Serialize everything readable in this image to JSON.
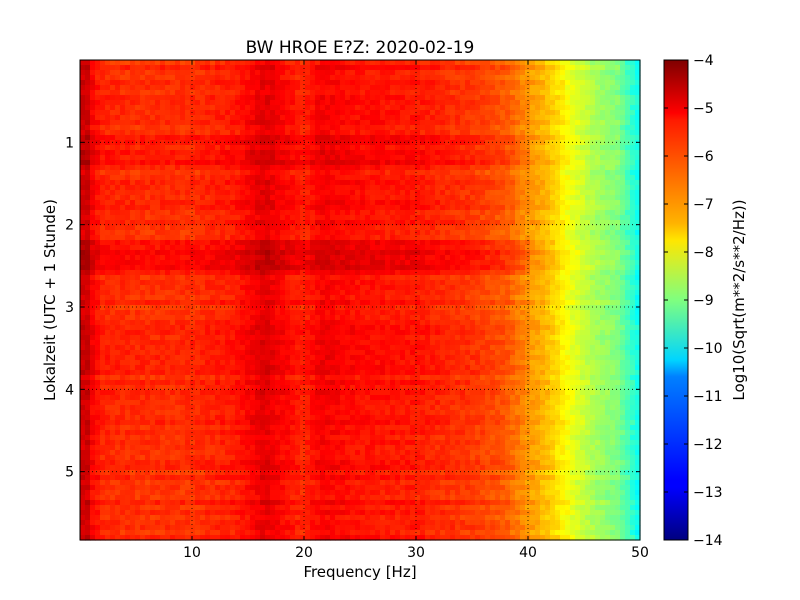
{
  "chart_data": {
    "type": "heatmap",
    "title": "BW HROE E?Z: 2020-02-19",
    "xlabel": "Frequency [Hz]",
    "ylabel": "Lokalzeit (UTC + 1 Stunde)",
    "colorbar_label": "Log10(Sqrt(m**2/s**2/Hz))",
    "colormap": "jet",
    "xlim": [
      0,
      50
    ],
    "ylim": [
      5.83,
      0
    ],
    "y_inverted": true,
    "clim": [
      -14,
      -4
    ],
    "grid": true,
    "x_ticks": [
      10,
      20,
      30,
      40,
      50
    ],
    "y_ticks": [
      1,
      2,
      3,
      4,
      5
    ],
    "colorbar_ticks": [
      -4,
      -5,
      -6,
      -7,
      -8,
      -9,
      -10,
      -11,
      -12,
      -13,
      -14
    ],
    "spectral_profile": {
      "frequency_hz": [
        0,
        0.5,
        1,
        2,
        5,
        10,
        14,
        16.5,
        17,
        20,
        21.5,
        25,
        30,
        35,
        38,
        40,
        42,
        44,
        46,
        48,
        50
      ],
      "log10_amplitude": [
        -5.0,
        -4.6,
        -5.2,
        -5.6,
        -5.7,
        -5.7,
        -5.5,
        -5.0,
        -5.1,
        -5.6,
        -5.2,
        -5.4,
        -5.5,
        -5.8,
        -6.1,
        -6.7,
        -7.2,
        -8.0,
        -8.6,
        -9.0,
        -10.2
      ]
    },
    "time_bands_hours": [
      {
        "start": 2.2,
        "end": 2.6,
        "offset": 0.35
      },
      {
        "start": 0.9,
        "end": 1.3,
        "offset": 0.2
      },
      {
        "start": 3.3,
        "end": 3.8,
        "offset": 0.15
      }
    ]
  },
  "colors": {
    "background": "#ffffff",
    "axes_edge": "#000000",
    "grid": "#000000"
  }
}
